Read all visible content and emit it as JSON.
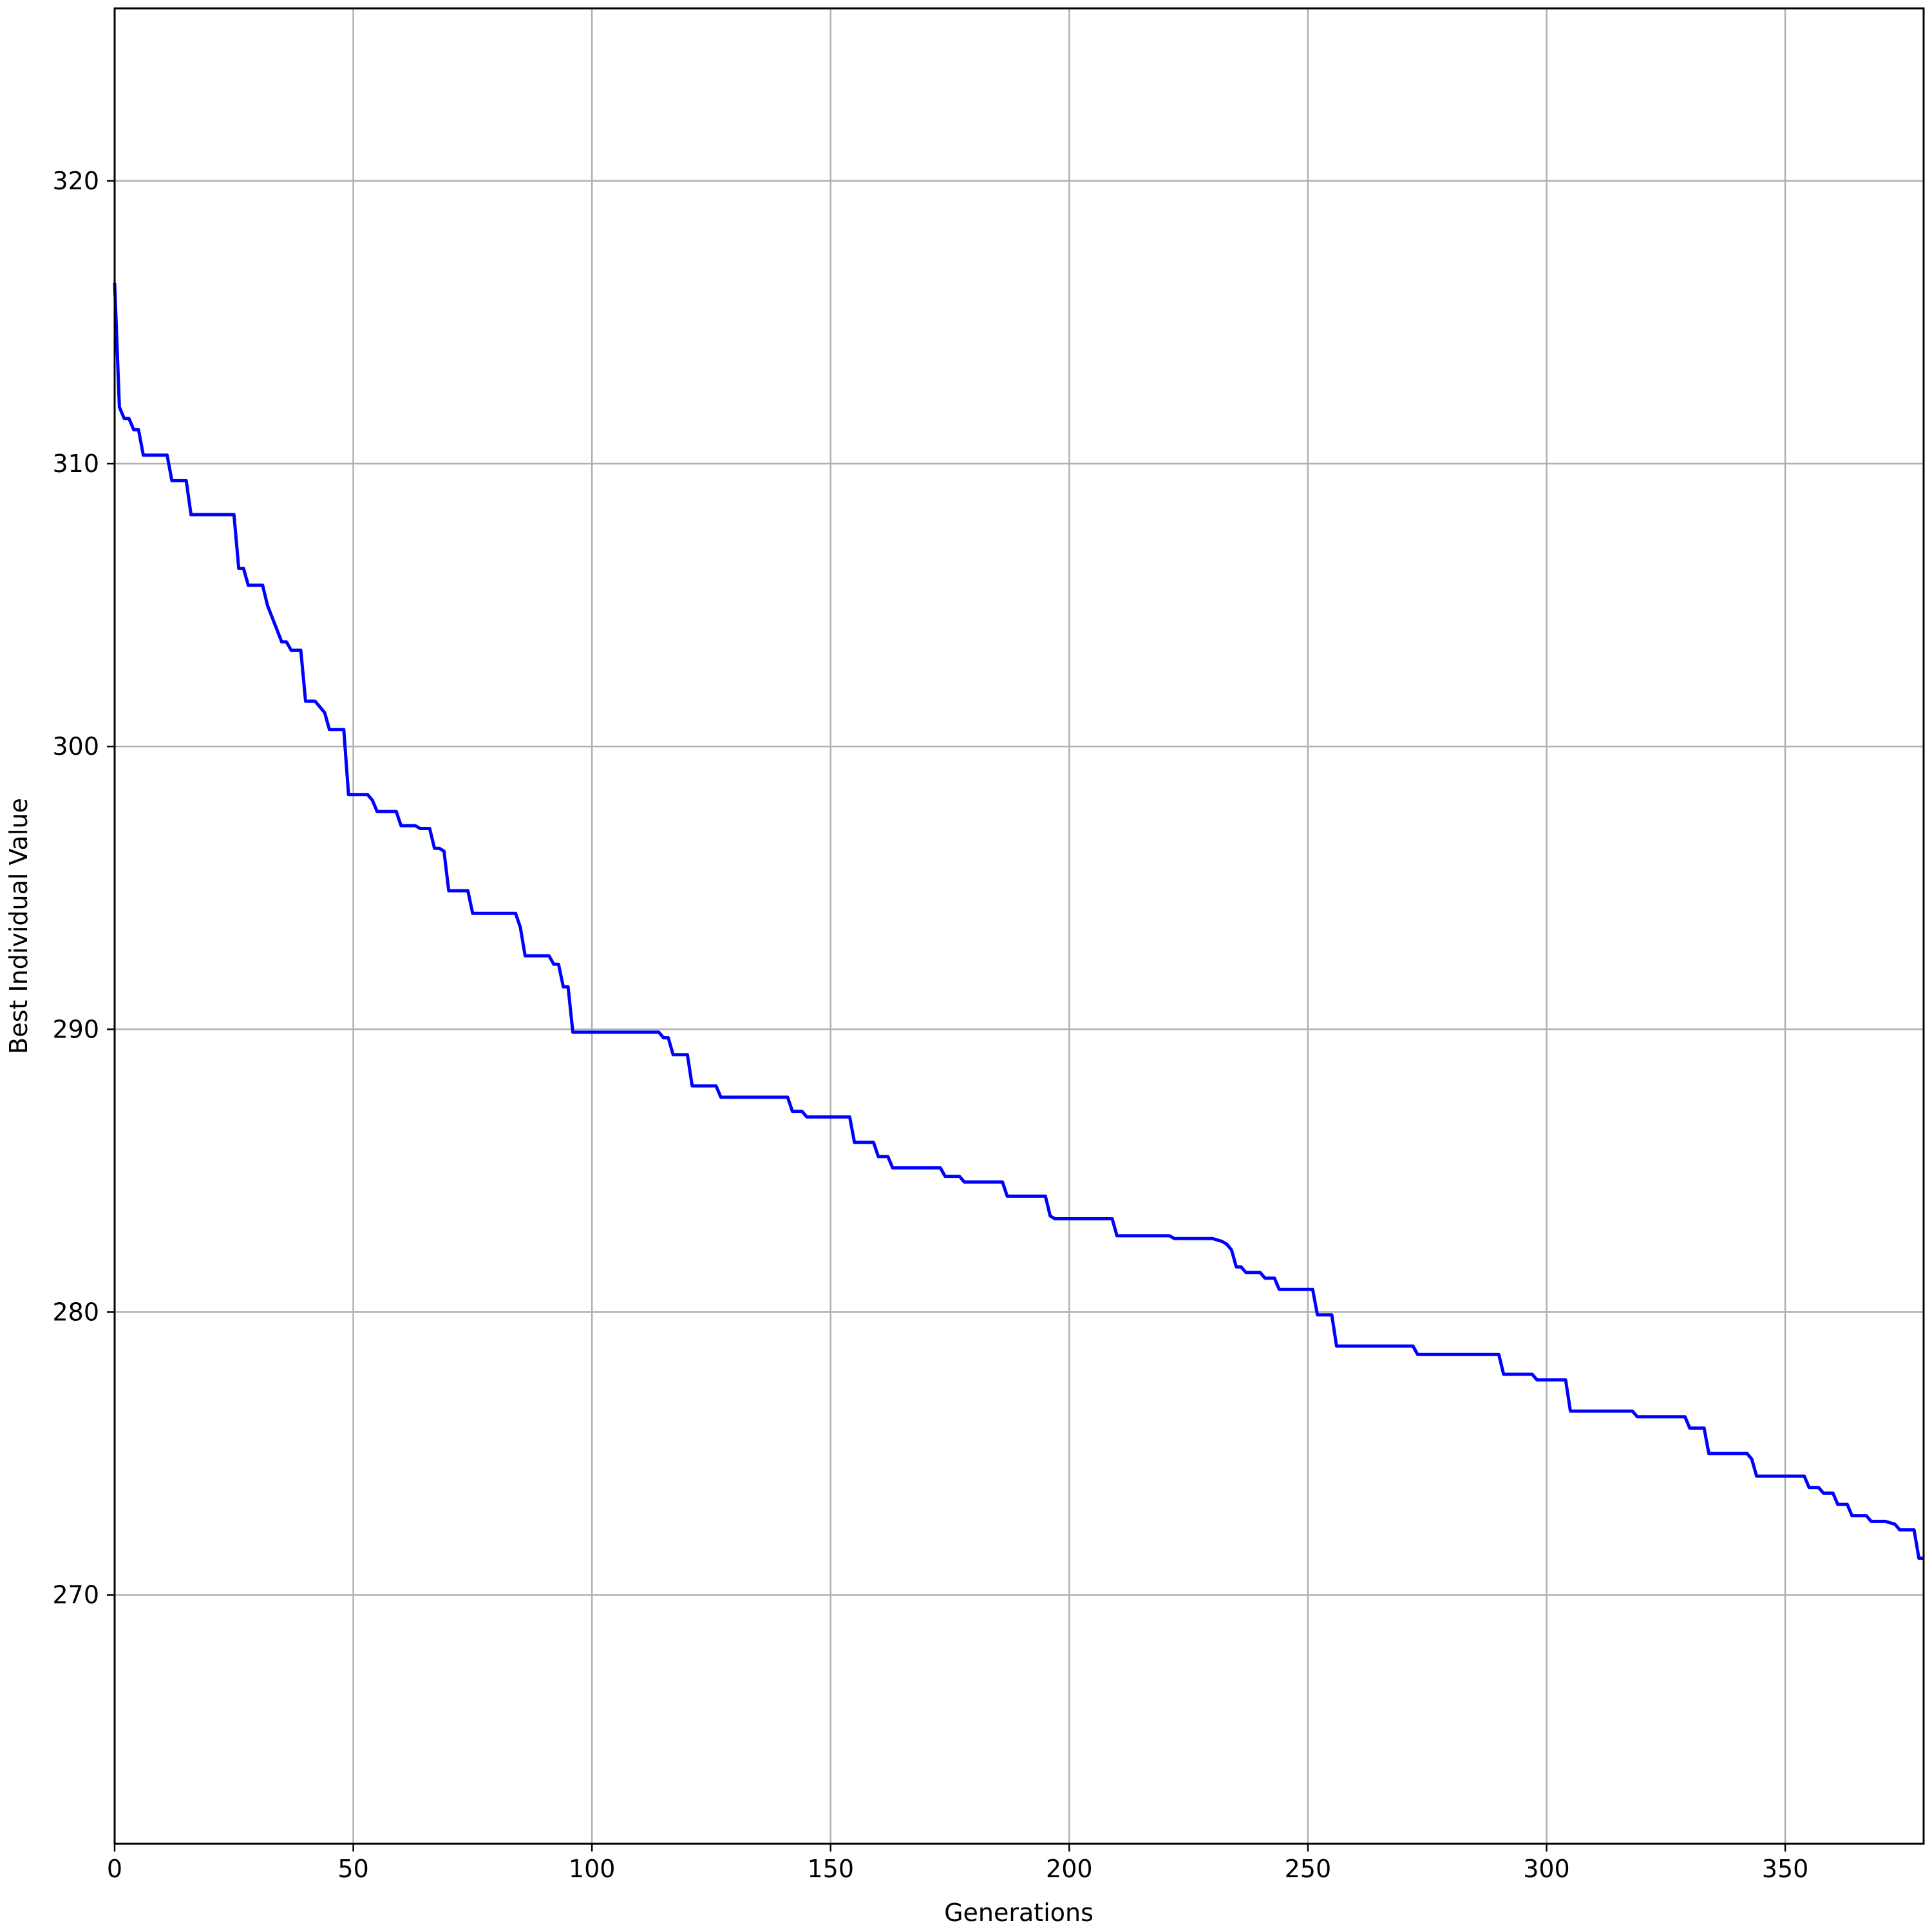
{
  "chart_data": {
    "type": "line",
    "title": "",
    "xlabel": "Generations",
    "ylabel": "Best Individual Value",
    "xlim": [
      0,
      379
    ],
    "ylim": [
      261.2,
      326.1
    ],
    "x_ticks": [
      0,
      50,
      100,
      150,
      200,
      250,
      300,
      350
    ],
    "y_ticks": [
      270,
      280,
      290,
      300,
      310,
      320
    ],
    "grid": true,
    "legend": "none",
    "colors": {
      "line": "#0000ff",
      "grid": "#b0b0b0",
      "axes": "#000000"
    },
    "series": [
      {
        "x": [
          0,
          1,
          2,
          3,
          4,
          5,
          6,
          7,
          8,
          11,
          12,
          13,
          15,
          16,
          25,
          26,
          27,
          28,
          31,
          32,
          35,
          36,
          37,
          39,
          40,
          41,
          42,
          43,
          44,
          45,
          46,
          48,
          49,
          50,
          53,
          54,
          55,
          56,
          59,
          60,
          61,
          63,
          64,
          66,
          67,
          68,
          69,
          70,
          74,
          75,
          78,
          83,
          84,
          85,
          86,
          91,
          92,
          93,
          94,
          95,
          96,
          97,
          114,
          115,
          116,
          117,
          120,
          121,
          126,
          127,
          141,
          142,
          144,
          145,
          154,
          155,
          159,
          160,
          162,
          163,
          173,
          174,
          177,
          178,
          186,
          187,
          195,
          196,
          197,
          209,
          210,
          221,
          222,
          230,
          232,
          233,
          234,
          235,
          236,
          237,
          240,
          241,
          243,
          244,
          251,
          252,
          255,
          256,
          272,
          273,
          290,
          291,
          297,
          298,
          304,
          305,
          318,
          319,
          329,
          330,
          333,
          334,
          342,
          343,
          344,
          354,
          355,
          357,
          358,
          360,
          361,
          363,
          364,
          367,
          368,
          371,
          373,
          374,
          377,
          378,
          379
        ],
        "y": [
          316.4,
          312.0,
          311.6,
          311.6,
          311.2,
          311.2,
          310.3,
          310.3,
          310.3,
          310.3,
          309.4,
          309.4,
          309.4,
          308.2,
          308.2,
          306.3,
          306.3,
          305.7,
          305.7,
          305.0,
          303.7,
          303.7,
          303.4,
          303.4,
          301.6,
          301.6,
          301.6,
          301.4,
          301.2,
          300.6,
          300.6,
          300.6,
          298.3,
          298.3,
          298.3,
          298.1,
          297.7,
          297.7,
          297.7,
          297.2,
          297.2,
          297.2,
          297.1,
          297.1,
          296.4,
          296.4,
          296.3,
          294.9,
          294.9,
          294.1,
          294.1,
          294.1,
          294.1,
          293.6,
          292.6,
          292.6,
          292.3,
          292.3,
          291.5,
          291.5,
          289.9,
          289.9,
          289.9,
          289.7,
          289.7,
          289.1,
          289.1,
          288.0,
          288.0,
          287.6,
          287.6,
          287.1,
          287.1,
          286.9,
          286.9,
          286.0,
          286.0,
          285.5,
          285.5,
          285.1,
          285.1,
          284.8,
          284.8,
          284.6,
          284.6,
          284.1,
          284.1,
          283.4,
          283.3,
          283.3,
          282.7,
          282.7,
          282.6,
          282.6,
          282.5,
          282.4,
          282.2,
          281.6,
          281.6,
          281.4,
          281.4,
          281.2,
          281.2,
          280.8,
          280.8,
          279.9,
          279.9,
          278.8,
          278.8,
          278.5,
          278.5,
          277.8,
          277.8,
          277.6,
          277.6,
          276.5,
          276.5,
          276.3,
          276.3,
          275.9,
          275.9,
          275.0,
          275.0,
          274.8,
          274.2,
          274.2,
          273.8,
          273.8,
          273.6,
          273.6,
          273.2,
          273.2,
          272.8,
          272.8,
          272.6,
          272.6,
          272.5,
          272.3,
          272.3,
          271.3,
          271.3
        ]
      }
    ]
  }
}
